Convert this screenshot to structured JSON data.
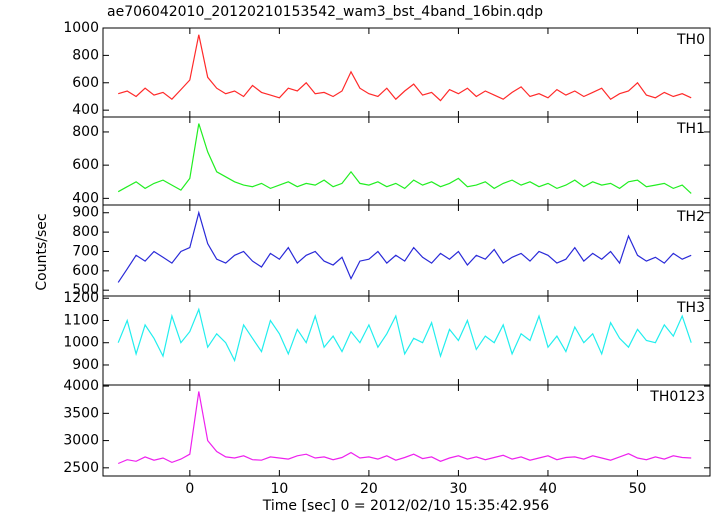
{
  "title": "ae706042010_20120210153542_wam3_bst_4band_16bin.qdp",
  "x_label": "Time [sec] 0 = 2012/02/10 15:35:42.956",
  "y_label": "Counts/sec",
  "chart_data": [
    {
      "type": "line",
      "x": [
        -8,
        -7,
        -6,
        -5,
        -4,
        -3,
        -2,
        -1,
        0,
        1,
        2,
        3,
        4,
        5,
        6,
        7,
        8,
        9,
        10,
        11,
        12,
        13,
        14,
        15,
        16,
        17,
        18,
        19,
        20,
        21,
        22,
        23,
        24,
        25,
        26,
        27,
        28,
        29,
        30,
        31,
        32,
        33,
        34,
        35,
        36,
        37,
        38,
        39,
        40,
        41,
        42,
        43,
        44,
        45,
        46,
        47,
        48,
        49,
        50,
        51,
        52,
        53,
        54,
        55,
        56
      ],
      "series": [
        {
          "name": "TH0",
          "color": "#ff2a2a",
          "values": [
            520,
            540,
            500,
            560,
            510,
            530,
            480,
            550,
            620,
            950,
            640,
            560,
            520,
            540,
            500,
            580,
            530,
            510,
            490,
            560,
            540,
            600,
            520,
            530,
            500,
            540,
            680,
            560,
            520,
            500,
            560,
            480,
            540,
            590,
            510,
            530,
            470,
            550,
            520,
            560,
            500,
            540,
            510,
            480,
            530,
            570,
            500,
            520,
            490,
            550,
            510,
            540,
            500,
            530,
            560,
            480,
            520,
            540,
            600,
            510,
            490,
            530,
            500,
            520,
            490
          ]
        }
      ],
      "xlim": [
        -9.7,
        58.1
      ],
      "ylim": [
        350,
        1000
      ],
      "yticks": [
        400,
        600,
        800,
        1000
      ]
    },
    {
      "type": "line",
      "x": [
        -8,
        -7,
        -6,
        -5,
        -4,
        -3,
        -2,
        -1,
        0,
        1,
        2,
        3,
        4,
        5,
        6,
        7,
        8,
        9,
        10,
        11,
        12,
        13,
        14,
        15,
        16,
        17,
        18,
        19,
        20,
        21,
        22,
        23,
        24,
        25,
        26,
        27,
        28,
        29,
        30,
        31,
        32,
        33,
        34,
        35,
        36,
        37,
        38,
        39,
        40,
        41,
        42,
        43,
        44,
        45,
        46,
        47,
        48,
        49,
        50,
        51,
        52,
        53,
        54,
        55,
        56
      ],
      "series": [
        {
          "name": "TH1",
          "color": "#22ee22",
          "values": [
            440,
            470,
            500,
            460,
            490,
            510,
            480,
            450,
            520,
            850,
            680,
            560,
            530,
            500,
            480,
            470,
            490,
            460,
            480,
            500,
            470,
            490,
            480,
            510,
            470,
            490,
            560,
            490,
            480,
            500,
            470,
            490,
            460,
            510,
            480,
            500,
            470,
            490,
            520,
            470,
            480,
            500,
            460,
            490,
            510,
            480,
            500,
            470,
            490,
            460,
            480,
            510,
            470,
            500,
            480,
            490,
            460,
            500,
            510,
            470,
            480,
            490,
            460,
            480,
            430
          ]
        }
      ],
      "xlim": [
        -9.7,
        58.1
      ],
      "ylim": [
        360,
        890
      ],
      "yticks": [
        400,
        600,
        800
      ]
    },
    {
      "type": "line",
      "x": [
        -8,
        -7,
        -6,
        -5,
        -4,
        -3,
        -2,
        -1,
        0,
        1,
        2,
        3,
        4,
        5,
        6,
        7,
        8,
        9,
        10,
        11,
        12,
        13,
        14,
        15,
        16,
        17,
        18,
        19,
        20,
        21,
        22,
        23,
        24,
        25,
        26,
        27,
        28,
        29,
        30,
        31,
        32,
        33,
        34,
        35,
        36,
        37,
        38,
        39,
        40,
        41,
        42,
        43,
        44,
        45,
        46,
        47,
        48,
        49,
        50,
        51,
        52,
        53,
        54,
        55,
        56
      ],
      "series": [
        {
          "name": "TH2",
          "color": "#2a2ad8",
          "values": [
            540,
            610,
            680,
            650,
            700,
            670,
            640,
            700,
            720,
            900,
            740,
            660,
            640,
            680,
            700,
            650,
            620,
            690,
            660,
            720,
            640,
            680,
            700,
            650,
            630,
            670,
            560,
            650,
            660,
            700,
            640,
            680,
            650,
            720,
            670,
            640,
            690,
            660,
            700,
            630,
            680,
            660,
            710,
            640,
            670,
            690,
            650,
            700,
            680,
            640,
            660,
            720,
            650,
            690,
            660,
            700,
            640,
            780,
            680,
            650,
            670,
            640,
            690,
            660,
            680
          ]
        }
      ],
      "xlim": [
        -9.7,
        58.1
      ],
      "ylim": [
        470,
        940
      ],
      "yticks": [
        500,
        600,
        700,
        800,
        900
      ]
    },
    {
      "type": "line",
      "x": [
        -8,
        -7,
        -6,
        -5,
        -4,
        -3,
        -2,
        -1,
        0,
        1,
        2,
        3,
        4,
        5,
        6,
        7,
        8,
        9,
        10,
        11,
        12,
        13,
        14,
        15,
        16,
        17,
        18,
        19,
        20,
        21,
        22,
        23,
        24,
        25,
        26,
        27,
        28,
        29,
        30,
        31,
        32,
        33,
        34,
        35,
        36,
        37,
        38,
        39,
        40,
        41,
        42,
        43,
        44,
        45,
        46,
        47,
        48,
        49,
        50,
        51,
        52,
        53,
        54,
        55,
        56
      ],
      "series": [
        {
          "name": "TH3",
          "color": "#22eeee",
          "values": [
            1000,
            1100,
            950,
            1080,
            1020,
            940,
            1120,
            1000,
            1050,
            1150,
            980,
            1040,
            1000,
            920,
            1080,
            1020,
            960,
            1100,
            1040,
            950,
            1060,
            1000,
            1120,
            980,
            1030,
            960,
            1050,
            1000,
            1080,
            980,
            1040,
            1120,
            950,
            1020,
            1000,
            1090,
            940,
            1060,
            1010,
            1100,
            970,
            1030,
            1000,
            1080,
            950,
            1040,
            1010,
            1120,
            980,
            1030,
            960,
            1070,
            1000,
            1040,
            950,
            1090,
            1020,
            980,
            1060,
            1010,
            1000,
            1080,
            1030,
            1120,
            1000
          ]
        }
      ],
      "xlim": [
        -9.7,
        58.1
      ],
      "ylim": [
        810,
        1210
      ],
      "yticks": [
        900,
        1000,
        1100,
        1200
      ]
    },
    {
      "type": "line",
      "x": [
        -8,
        -7,
        -6,
        -5,
        -4,
        -3,
        -2,
        -1,
        0,
        1,
        2,
        3,
        4,
        5,
        6,
        7,
        8,
        9,
        10,
        11,
        12,
        13,
        14,
        15,
        16,
        17,
        18,
        19,
        20,
        21,
        22,
        23,
        24,
        25,
        26,
        27,
        28,
        29,
        30,
        31,
        32,
        33,
        34,
        35,
        36,
        37,
        38,
        39,
        40,
        41,
        42,
        43,
        44,
        45,
        46,
        47,
        48,
        49,
        50,
        51,
        52,
        53,
        54,
        55,
        56
      ],
      "series": [
        {
          "name": "TH0123",
          "color": "#ee22ee",
          "values": [
            2580,
            2650,
            2620,
            2700,
            2640,
            2680,
            2600,
            2660,
            2750,
            3900,
            3000,
            2800,
            2700,
            2680,
            2720,
            2650,
            2640,
            2700,
            2680,
            2660,
            2720,
            2750,
            2680,
            2700,
            2650,
            2690,
            2780,
            2680,
            2700,
            2660,
            2720,
            2640,
            2690,
            2750,
            2670,
            2700,
            2620,
            2680,
            2720,
            2660,
            2700,
            2650,
            2690,
            2730,
            2660,
            2700,
            2640,
            2680,
            2720,
            2650,
            2690,
            2700,
            2660,
            2720,
            2680,
            2640,
            2700,
            2760,
            2680,
            2650,
            2700,
            2660,
            2720,
            2690,
            2680
          ]
        }
      ],
      "xlim": [
        -9.7,
        58.1
      ],
      "ylim": [
        2350,
        4020
      ],
      "yticks": [
        2500,
        3000,
        3500,
        4000
      ],
      "xticks": [
        0,
        10,
        20,
        30,
        40,
        50
      ]
    }
  ]
}
